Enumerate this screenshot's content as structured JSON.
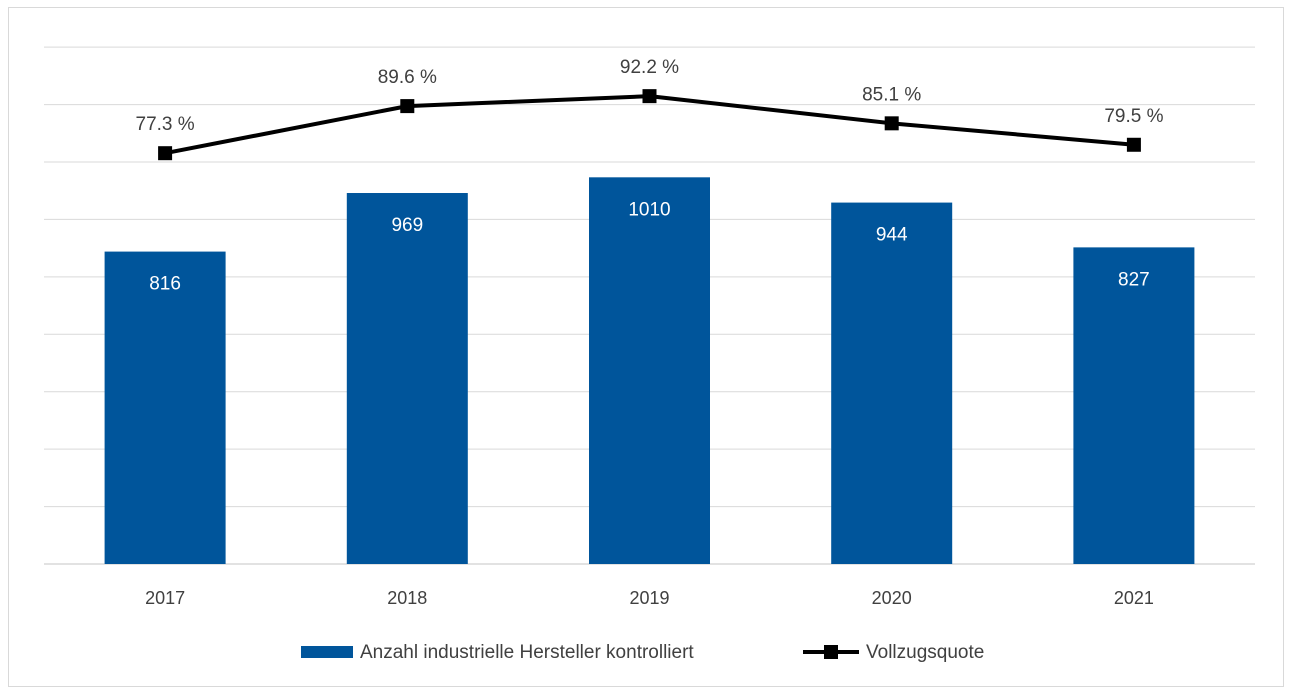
{
  "chart_data": {
    "type": "bar",
    "categories": [
      "2017",
      "2018",
      "2019",
      "2020",
      "2021"
    ],
    "series": [
      {
        "name": "Anzahl industrielle Hersteller kontrolliert",
        "type": "bar",
        "axis": "left",
        "values": [
          816,
          969,
          1010,
          944,
          827
        ],
        "labels": [
          "816",
          "969",
          "1010",
          "944",
          "827"
        ],
        "color": "#00559b"
      },
      {
        "name": "Vollzugsquote",
        "type": "line",
        "axis": "right",
        "marker": "square",
        "values": [
          77.3,
          89.6,
          92.2,
          85.1,
          79.5
        ],
        "labels": [
          "77.3 %",
          "89.6 %",
          "92.2 %",
          "85.1 %",
          "79.5 %"
        ],
        "color": "#000000"
      }
    ],
    "ylim_left": [
      0,
      1400
    ],
    "ylim_right": [
      -30,
      110
    ],
    "grid": true,
    "legend_position": "bottom",
    "gridline_color": "#d9d9d9"
  }
}
